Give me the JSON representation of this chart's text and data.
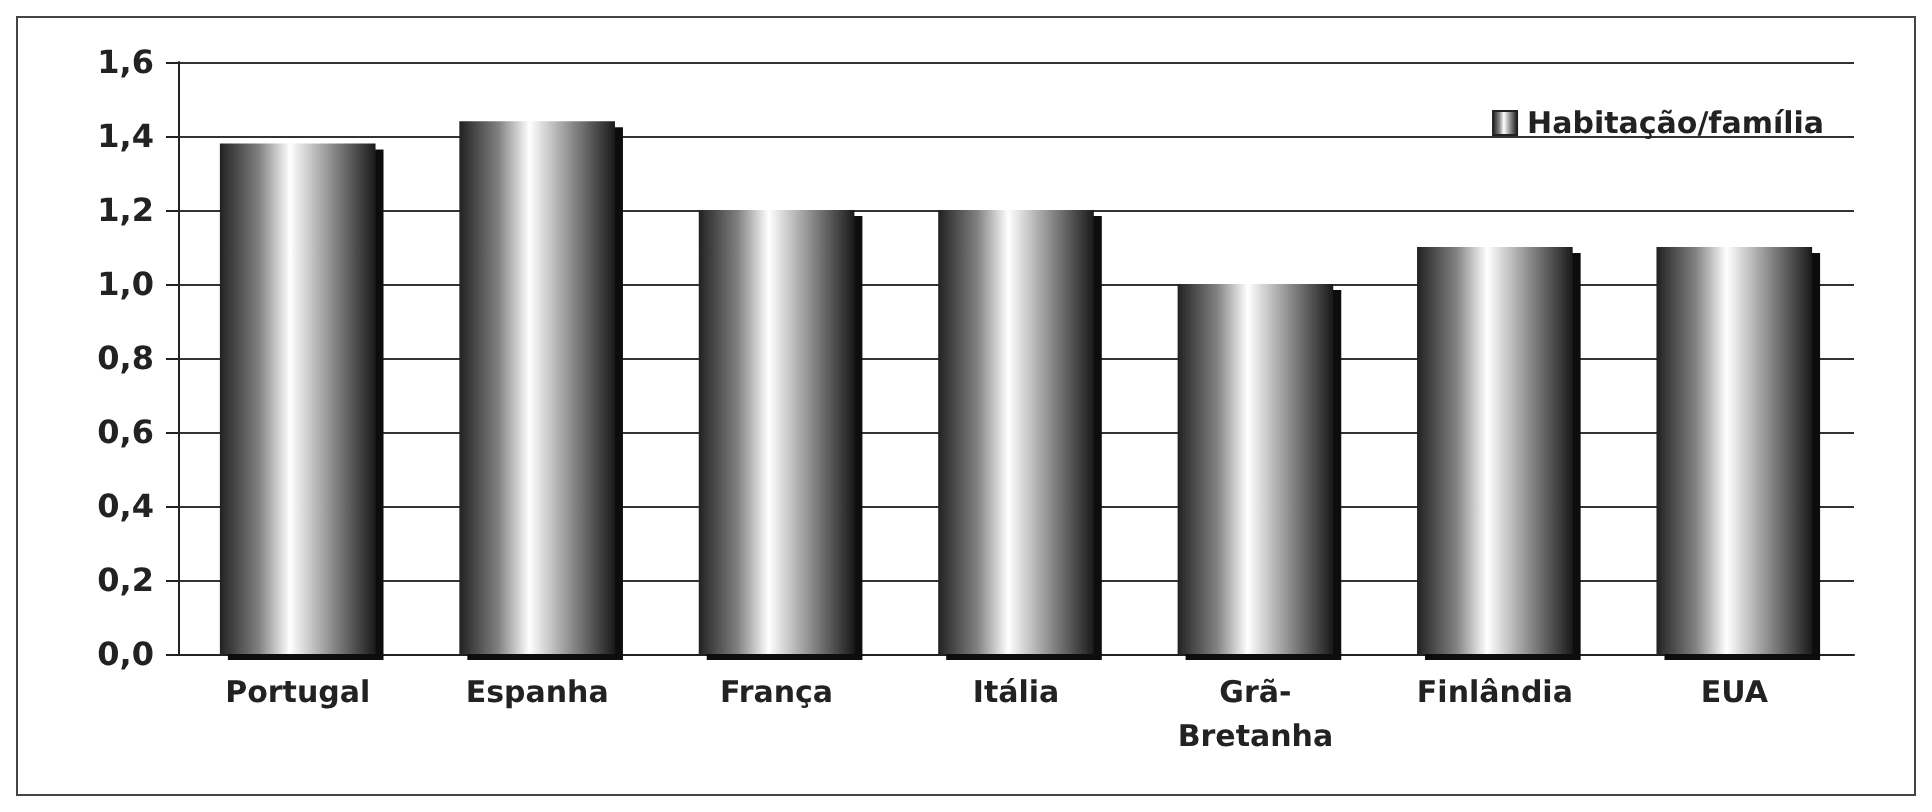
{
  "chart_data": {
    "type": "bar",
    "categories": [
      "Portugal",
      "Espanha",
      "França",
      "Itália",
      "Grã-Bretanha",
      "Finlândia",
      "EUA"
    ],
    "series": [
      {
        "name": "Habitação/família",
        "color": "#808080",
        "values": [
          1.38,
          1.44,
          1.2,
          1.2,
          1.0,
          1.1,
          1.1
        ]
      }
    ],
    "ylim": [
      0,
      1.6
    ],
    "yticks": [
      {
        "value": 0,
        "label": "0,0"
      },
      {
        "value": 0.2,
        "label": "0,2"
      },
      {
        "value": 0.4,
        "label": "0,4"
      },
      {
        "value": 0.6,
        "label": "0,6"
      },
      {
        "value": 0.8,
        "label": "0,8"
      },
      {
        "value": 1.0,
        "label": "1,0"
      },
      {
        "value": 1.2,
        "label": "1,2"
      },
      {
        "value": 1.4,
        "label": "1,4"
      },
      {
        "value": 1.6,
        "label": "1,6"
      }
    ],
    "grid": "y",
    "legend": "top right"
  }
}
